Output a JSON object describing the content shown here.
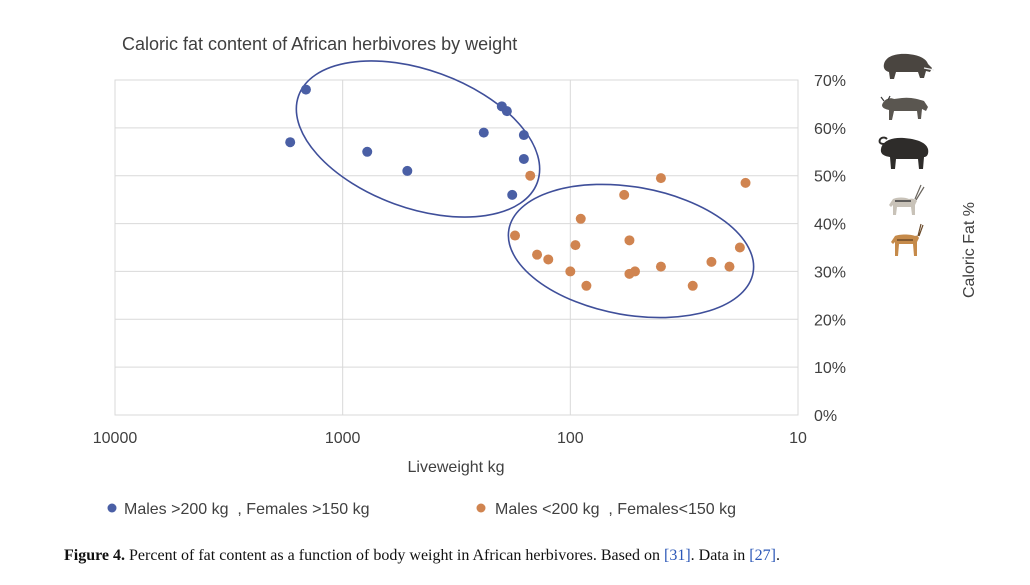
{
  "chart_data": {
    "type": "scatter",
    "title": "Caloric fat content of African herbivores by weight",
    "xlabel": "Liveweight kg",
    "ylabel": "Caloric Fat %",
    "x_scale": "log",
    "x_reversed": true,
    "xlim": [
      10000,
      10
    ],
    "ylim": [
      0,
      70
    ],
    "x_ticks": [
      {
        "value": 10000,
        "label": "10000"
      },
      {
        "value": 1000,
        "label": "1000"
      },
      {
        "value": 100,
        "label": "100"
      },
      {
        "value": 10,
        "label": "10"
      }
    ],
    "y_ticks": [
      {
        "value": 0,
        "label": "0%"
      },
      {
        "value": 10,
        "label": "10%"
      },
      {
        "value": 20,
        "label": "20%"
      },
      {
        "value": 30,
        "label": "30%"
      },
      {
        "value": 40,
        "label": "40%"
      },
      {
        "value": 50,
        "label": "50%"
      },
      {
        "value": 60,
        "label": "60%"
      },
      {
        "value": 70,
        "label": "70%"
      }
    ],
    "grid": true,
    "y_axis_position": "right",
    "legend_position": "bottom",
    "series": [
      {
        "name": "Males >200 kg  , Females >150 kg",
        "color": "#4a5fa5",
        "points": [
          {
            "x": 1700,
            "y": 57
          },
          {
            "x": 1450,
            "y": 68
          },
          {
            "x": 780,
            "y": 55
          },
          {
            "x": 520,
            "y": 51
          },
          {
            "x": 240,
            "y": 59
          },
          {
            "x": 200,
            "y": 64.5
          },
          {
            "x": 190,
            "y": 63.5
          },
          {
            "x": 160,
            "y": 58.5
          },
          {
            "x": 160,
            "y": 53.5
          },
          {
            "x": 180,
            "y": 46
          }
        ]
      },
      {
        "name": "Males <200 kg  , Females<150 kg",
        "color": "#d08450",
        "points": [
          {
            "x": 175,
            "y": 37.5
          },
          {
            "x": 150,
            "y": 50
          },
          {
            "x": 140,
            "y": 33.5
          },
          {
            "x": 125,
            "y": 32.5
          },
          {
            "x": 95,
            "y": 35.5
          },
          {
            "x": 90,
            "y": 41
          },
          {
            "x": 100,
            "y": 30
          },
          {
            "x": 85,
            "y": 27
          },
          {
            "x": 58,
            "y": 46
          },
          {
            "x": 55,
            "y": 36.5
          },
          {
            "x": 55,
            "y": 29.5
          },
          {
            "x": 52,
            "y": 30
          },
          {
            "x": 40,
            "y": 49.5
          },
          {
            "x": 40,
            "y": 31
          },
          {
            "x": 29,
            "y": 27
          },
          {
            "x": 24,
            "y": 32
          },
          {
            "x": 20,
            "y": 31
          },
          {
            "x": 18,
            "y": 35
          },
          {
            "x": 17,
            "y": 48.5
          }
        ]
      }
    ]
  },
  "caption": {
    "label": "Figure 4.",
    "text_before_ref1": " Percent of fat content as a function of body weight in African herbivores. Based on ",
    "ref1": "[31]",
    "text_between": ". Data in ",
    "ref2": "[27]",
    "text_after": "."
  },
  "icons": [
    "warthog-icon",
    "wildebeest-icon",
    "buffalo-icon",
    "oryx-icon",
    "springbok-icon"
  ]
}
